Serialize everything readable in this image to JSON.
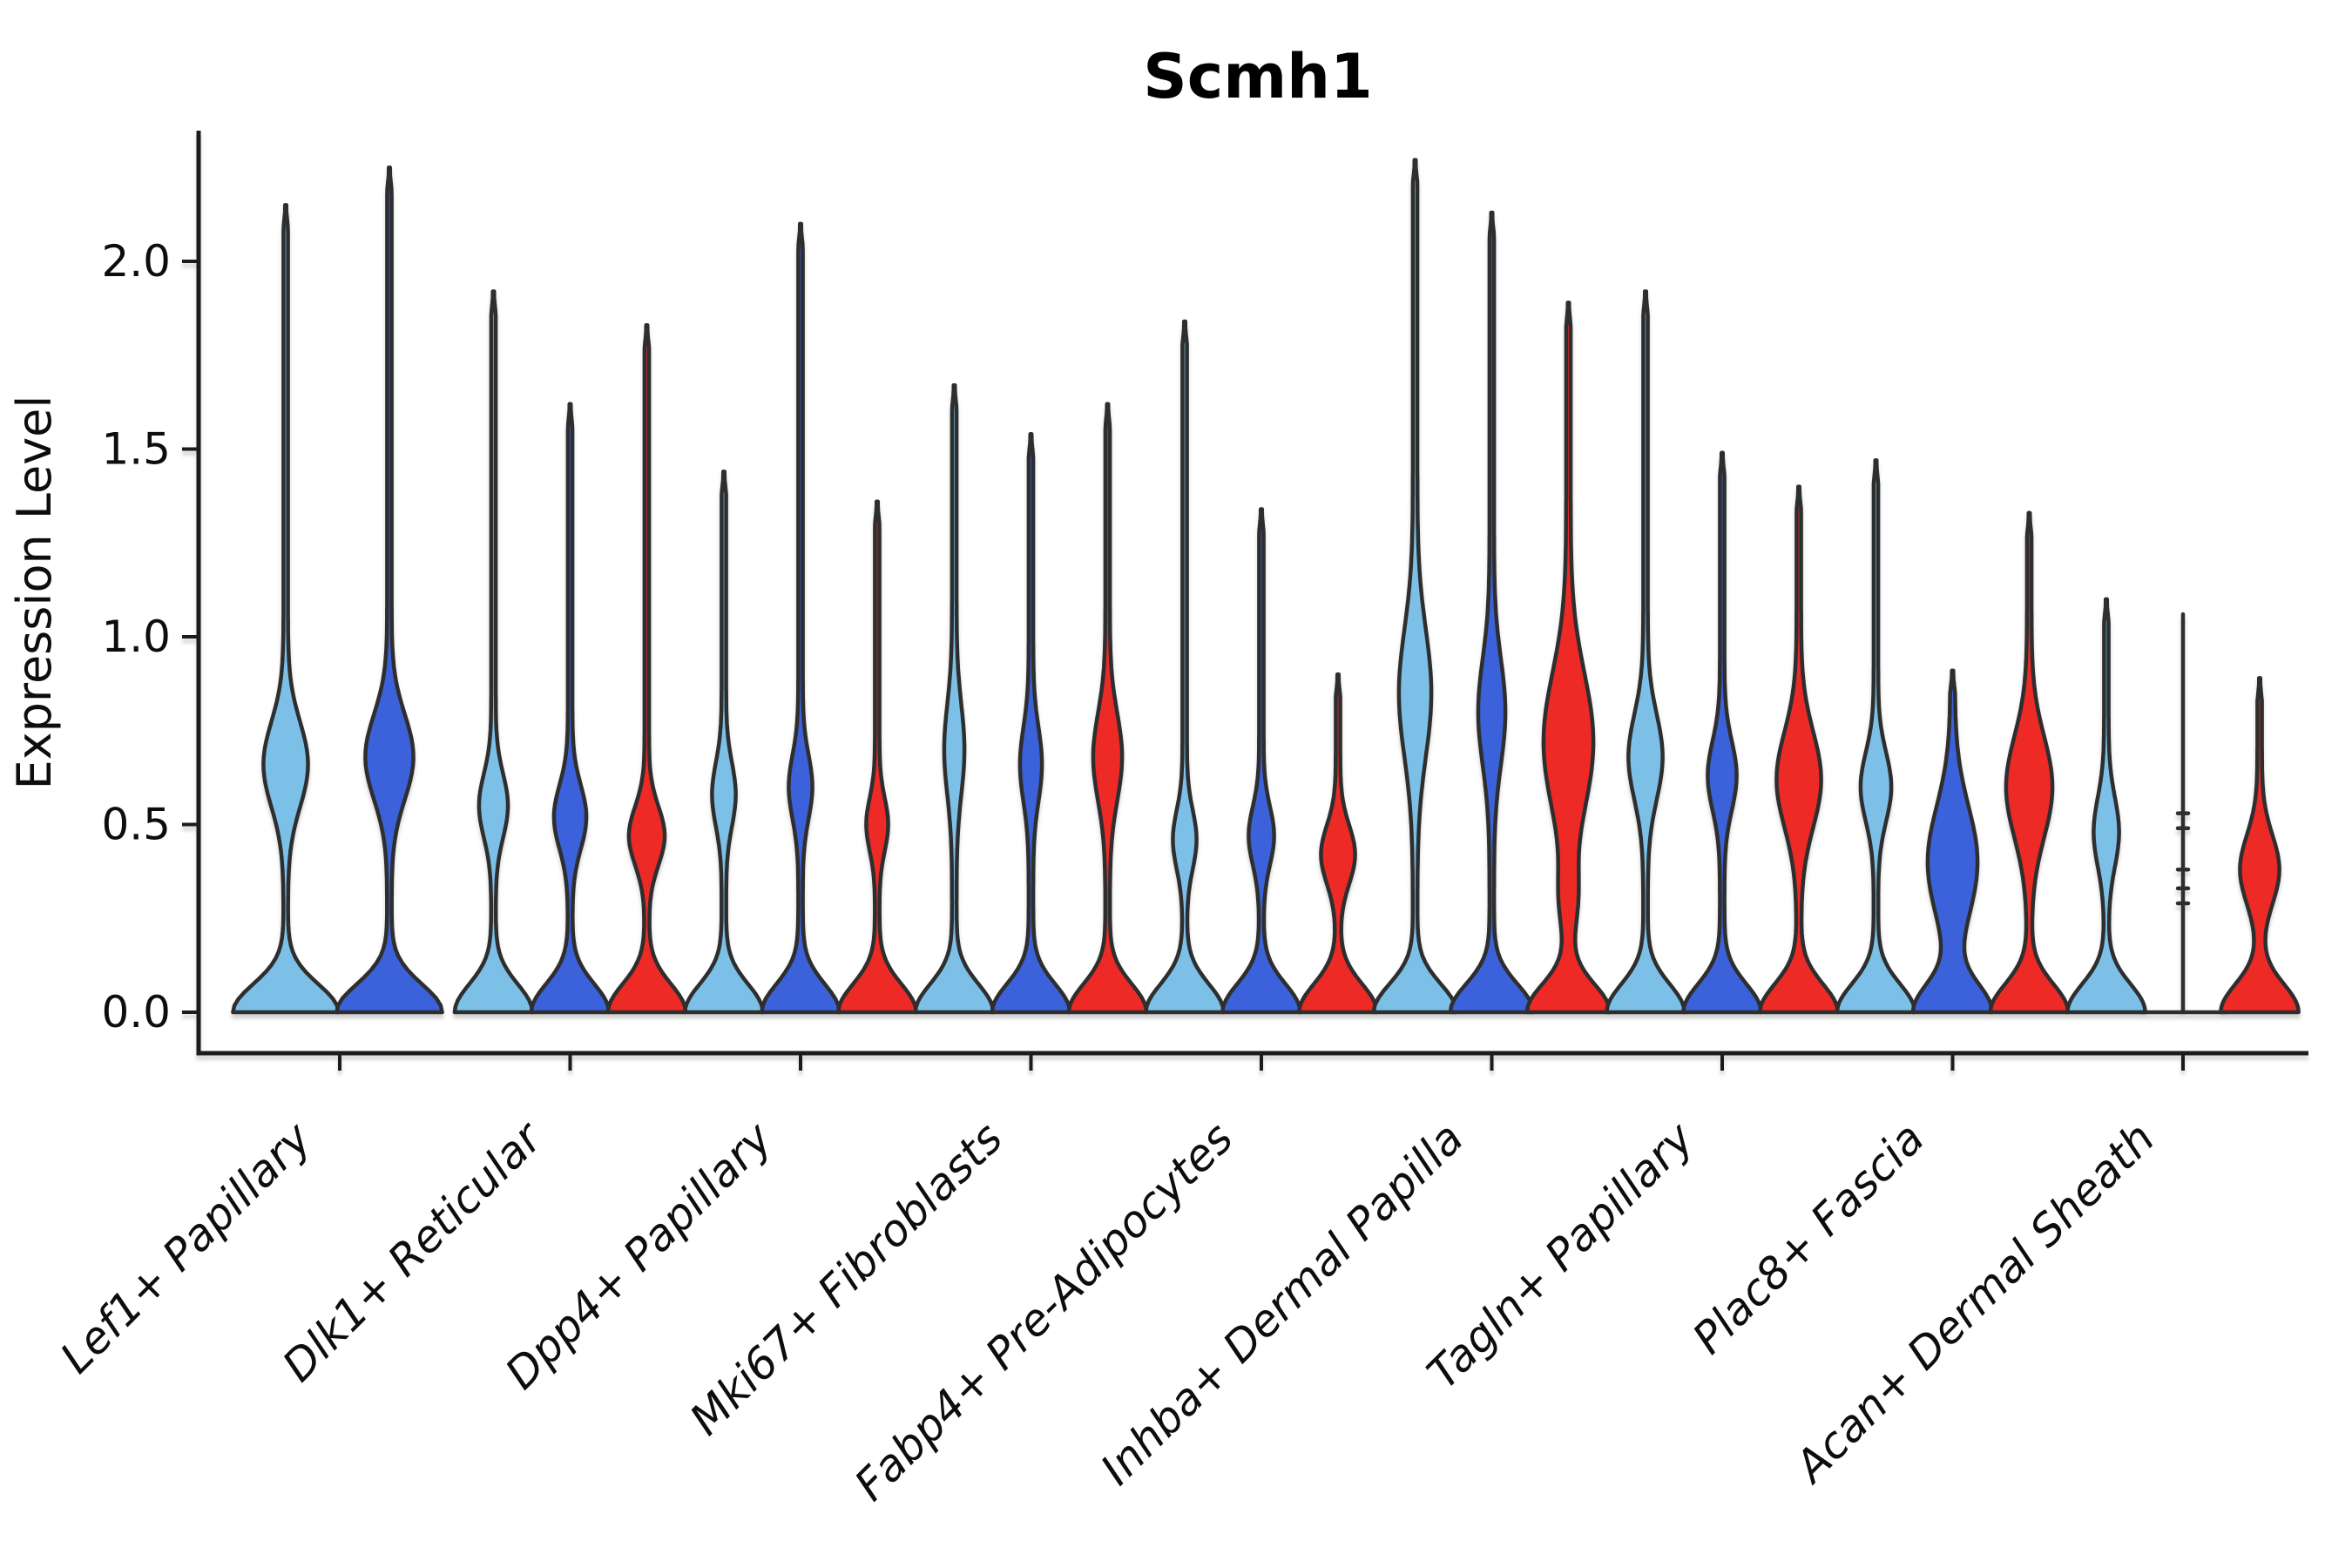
{
  "figure": {
    "title": "Scmh1",
    "background": "#ffffff"
  },
  "colors": {
    "light_blue": "#7CC0E8",
    "dark_blue": "#3B62DA",
    "red": "#ED2B28",
    "outline": "#2E2E2E",
    "axis": "#1B1B1B",
    "shadow": "#9A9A9A",
    "text": "#0d0d0d"
  },
  "chart_data": {
    "type": "violin",
    "title": "Scmh1",
    "xlabel": "",
    "ylabel": "Expression Level",
    "ylim": [
      0,
      2.45
    ],
    "yticks": [
      0.0,
      0.5,
      1.0,
      1.5,
      2.0
    ],
    "ytick_labels": [
      "0.0",
      "0.5",
      "1.0",
      "1.5",
      "2.0"
    ],
    "grid": false,
    "legend": "none",
    "categories": [
      "Lef1+ Papillary",
      "Dlk1+ Reticular",
      "Dpp4+ Papillary",
      "Mki67+ Fibroblasts",
      "Fabp4+ Pre-Adipocytes",
      "Inhba+ Dermal Papilla",
      "Tagln+ Papillary",
      "Plac8+ Fascia",
      "Acan+ Dermal Sheath"
    ],
    "series": [
      {
        "name": "light-blue-sample",
        "color": "#7CC0E8",
        "violins": [
          {
            "dx": -62,
            "max": 2.15,
            "base_hw": 58,
            "bulges": [
              {
                "c": 0.66,
                "s": 0.16,
                "w": 23
              }
            ]
          },
          {
            "dx": -88,
            "max": 1.92,
            "base_hw": 42,
            "bulges": [
              {
                "c": 0.55,
                "s": 0.12,
                "w": 14
              }
            ]
          },
          {
            "dx": -88,
            "max": 1.44,
            "base_hw": 42,
            "bulges": [
              {
                "c": 0.58,
                "s": 0.12,
                "w": 11
              }
            ]
          },
          {
            "dx": -88,
            "max": 1.67,
            "base_hw": 42,
            "bulges": [
              {
                "c": 0.7,
                "s": 0.17,
                "w": 9
              }
            ]
          },
          {
            "dx": -88,
            "max": 1.84,
            "base_hw": 42,
            "bulges": [
              {
                "c": 0.46,
                "s": 0.11,
                "w": 11
              }
            ]
          },
          {
            "dx": -88,
            "max": 2.27,
            "base_hw": 45,
            "bulges": [
              {
                "c": 0.85,
                "s": 0.24,
                "w": 16
              }
            ]
          },
          {
            "dx": -88,
            "max": 1.92,
            "base_hw": 42,
            "bulges": [
              {
                "c": 0.68,
                "s": 0.16,
                "w": 17
              }
            ]
          },
          {
            "dx": -88,
            "max": 1.47,
            "base_hw": 42,
            "bulges": [
              {
                "c": 0.6,
                "s": 0.13,
                "w": 15
              }
            ]
          },
          {
            "dx": -88,
            "max": 1.1,
            "base_hw": 42,
            "bulges": [
              {
                "c": 0.48,
                "s": 0.13,
                "w": 12
              }
            ]
          }
        ]
      },
      {
        "name": "dark-blue-sample",
        "color": "#3B62DA",
        "violins": [
          {
            "dx": 57,
            "max": 2.25,
            "base_hw": 58,
            "bulges": [
              {
                "c": 0.68,
                "s": 0.16,
                "w": 25
              }
            ]
          },
          {
            "dx": 0,
            "max": 1.62,
            "base_hw": 42,
            "bulges": [
              {
                "c": 0.52,
                "s": 0.12,
                "w": 16
              }
            ]
          },
          {
            "dx": 0,
            "max": 2.1,
            "base_hw": 42,
            "bulges": [
              {
                "c": 0.6,
                "s": 0.12,
                "w": 11
              }
            ]
          },
          {
            "dx": 0,
            "max": 1.54,
            "base_hw": 42,
            "bulges": [
              {
                "c": 0.66,
                "s": 0.14,
                "w": 10
              }
            ]
          },
          {
            "dx": 0,
            "max": 1.34,
            "base_hw": 42,
            "bulges": [
              {
                "c": 0.47,
                "s": 0.11,
                "w": 12
              }
            ]
          },
          {
            "dx": 0,
            "max": 2.13,
            "base_hw": 45,
            "bulges": [
              {
                "c": 0.8,
                "s": 0.2,
                "w": 13
              }
            ]
          },
          {
            "dx": 0,
            "max": 1.49,
            "base_hw": 42,
            "bulges": [
              {
                "c": 0.63,
                "s": 0.13,
                "w": 14
              }
            ]
          },
          {
            "dx": 0,
            "max": 0.91,
            "base_hw": 42,
            "bulges": [
              {
                "c": 0.4,
                "s": 0.21,
                "w": 26
              }
            ]
          },
          {
            "dx": 0,
            "max": 1.06,
            "style": "line",
            "nubs": [
              0.53,
              0.49,
              0.38,
              0.33,
              0.29
            ]
          }
        ]
      },
      {
        "name": "red-sample",
        "color": "#ED2B28",
        "violins": [
          null,
          {
            "dx": 88,
            "max": 1.83,
            "base_hw": 42,
            "bulges": [
              {
                "c": 0.47,
                "s": 0.11,
                "w": 18
              }
            ]
          },
          {
            "dx": 88,
            "max": 1.36,
            "base_hw": 42,
            "bulges": [
              {
                "c": 0.5,
                "s": 0.1,
                "w": 10
              }
            ]
          },
          {
            "dx": 88,
            "max": 1.62,
            "base_hw": 42,
            "bulges": [
              {
                "c": 0.68,
                "s": 0.165,
                "w": 14
              }
            ]
          },
          {
            "dx": 88,
            "max": 0.9,
            "base_hw": 42,
            "bulges": [
              {
                "c": 0.42,
                "s": 0.11,
                "w": 17
              }
            ]
          },
          {
            "dx": 88,
            "max": 1.89,
            "base_hw": 45,
            "bulges": [
              {
                "c": 0.72,
                "s": 0.26,
                "w": 26
              },
              {
                "c": 0.3,
                "s": 0.12,
                "w": 7
              }
            ]
          },
          {
            "dx": 88,
            "max": 1.4,
            "base_hw": 42,
            "bulges": [
              {
                "c": 0.62,
                "s": 0.18,
                "w": 23
              }
            ]
          },
          {
            "dx": 88,
            "max": 1.33,
            "base_hw": 42,
            "bulges": [
              {
                "c": 0.6,
                "s": 0.19,
                "w": 24
              }
            ]
          },
          {
            "dx": 88,
            "max": 0.89,
            "base_hw": 42,
            "bulges": [
              {
                "c": 0.38,
                "s": 0.13,
                "w": 20
              }
            ]
          }
        ]
      }
    ]
  }
}
